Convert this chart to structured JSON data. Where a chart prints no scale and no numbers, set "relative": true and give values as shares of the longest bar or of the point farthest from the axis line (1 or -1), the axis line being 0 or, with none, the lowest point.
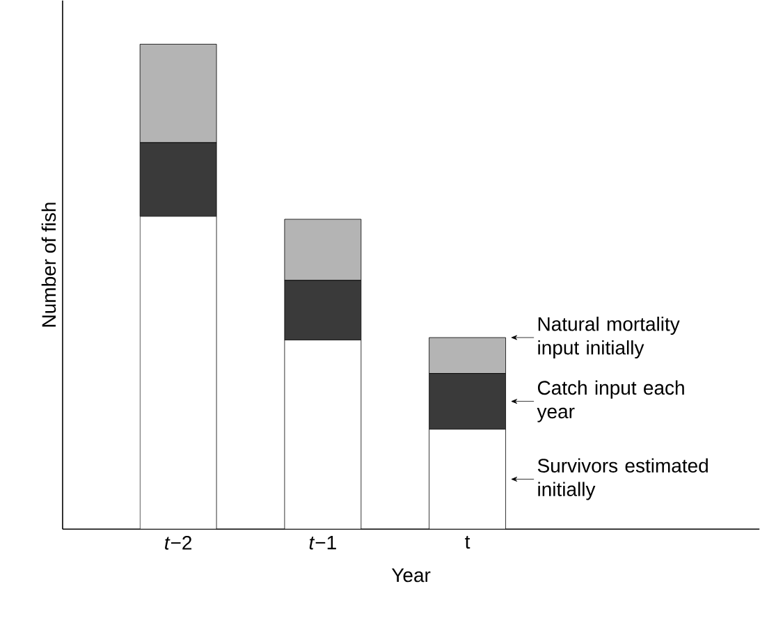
{
  "chart_data": {
    "type": "bar",
    "stacked": true,
    "relative": true,
    "xlabel": "Year",
    "ylabel": "Number of fish",
    "categories": [
      "*t*−2",
      "*t*−1",
      "t"
    ],
    "legend": "right",
    "series": [
      {
        "name": "Survivors estimated initially",
        "color": "#ffffff",
        "values": [
          0.645,
          0.39,
          0.206
        ]
      },
      {
        "name": "Catch input each year",
        "color": "#3a3a3a",
        "values": [
          0.152,
          0.123,
          0.115
        ]
      },
      {
        "name": "Natural mortality input initially",
        "color": "#b4b4b4",
        "values": [
          0.203,
          0.126,
          0.074
        ]
      }
    ]
  }
}
